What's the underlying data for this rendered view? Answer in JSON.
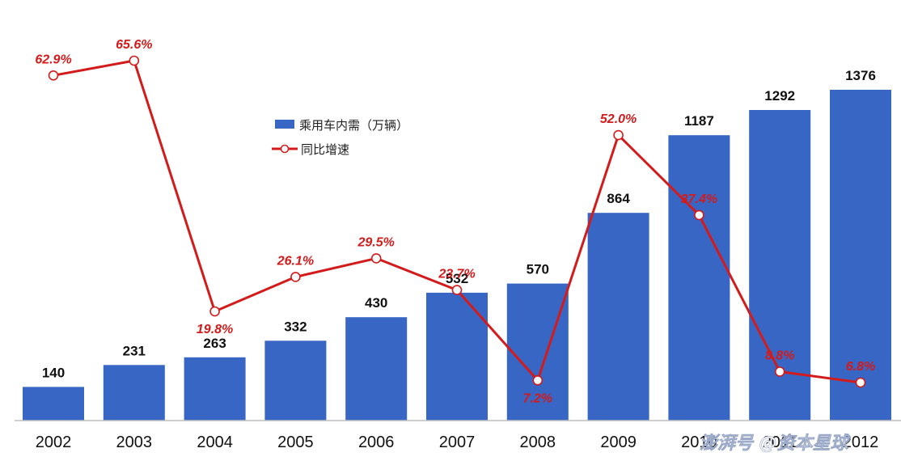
{
  "chart_data": {
    "type": "bar",
    "categories": [
      "2002",
      "2003",
      "2004",
      "2005",
      "2006",
      "2007",
      "2008",
      "2009",
      "2010",
      "2011",
      "2012"
    ],
    "series": [
      {
        "name": "乘用车内需（万辆）",
        "type": "bar",
        "values": [
          140,
          231,
          263,
          332,
          430,
          532,
          570,
          864,
          1187,
          1292,
          1376
        ],
        "labels": [
          "140",
          "231",
          "263",
          "332",
          "430",
          "532",
          "570",
          "864",
          "1187",
          "1292",
          "1376"
        ],
        "color": "#3766c5"
      },
      {
        "name": "同比增速",
        "type": "line",
        "values": [
          62.9,
          65.6,
          19.8,
          26.1,
          29.5,
          23.7,
          7.2,
          52.0,
          37.4,
          8.8,
          6.8
        ],
        "labels": [
          "62.9%",
          "65.6%",
          "19.8%",
          "26.1%",
          "29.5%",
          "23.7%",
          "7.2%",
          "52.0%",
          "37.4%",
          "8.8%",
          "6.8%"
        ],
        "color": "#d31b1b"
      }
    ],
    "legend_position": "center-upper",
    "grid": false
  },
  "watermark": "澎湃号 @资本星球"
}
